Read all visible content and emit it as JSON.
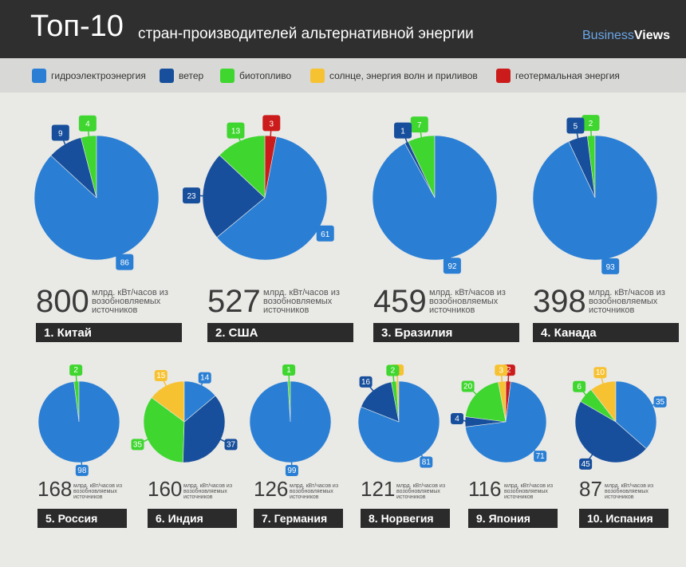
{
  "header": {
    "title_main": "Топ-10",
    "title_sub": "стран-производителей альтернативной энергии",
    "brand_a": "Business",
    "brand_b": "Views"
  },
  "legend": [
    {
      "label": "гидроэлектроэнергия",
      "color": "#2a7fd4"
    },
    {
      "label": "ветер",
      "color": "#184f9c"
    },
    {
      "label": "биотопливо",
      "color": "#3fd62f"
    },
    {
      "label": "солнце, энергия волн и приливов",
      "color": "#f7c232"
    },
    {
      "label": "геотермальная энергия",
      "color": "#cc1b1b"
    }
  ],
  "unit_text": "млрд. кВт/часов из возобновляемых источников",
  "chart_data": {
    "type": "pie",
    "title": "Топ-10 стран-производителей альтернативной энергии",
    "series_names": [
      "гидроэлектроэнергия",
      "ветер",
      "биотопливо",
      "солнце, энергия волн и приливов",
      "геотермальная энергия"
    ],
    "countries": [
      {
        "rank_label": "1. Китай",
        "total": "800",
        "shares": {
          "hydro": 86,
          "wind": 9,
          "bio": 4
        }
      },
      {
        "rank_label": "2. США",
        "total": "527",
        "shares": {
          "hydro": 61,
          "wind": 23,
          "bio": 13,
          "geo": 3
        }
      },
      {
        "rank_label": "3. Бразилия",
        "total": "459",
        "shares": {
          "hydro": 92,
          "wind": 1,
          "bio": 7
        }
      },
      {
        "rank_label": "4. Канада",
        "total": "398",
        "shares": {
          "hydro": 93,
          "wind": 5,
          "bio": 2
        }
      },
      {
        "rank_label": "5. Россия",
        "total": "168",
        "shares": {
          "hydro": 98,
          "bio": 2
        }
      },
      {
        "rank_label": "6. Индия",
        "total": "160",
        "shares": {
          "hydro": 14,
          "wind": 37,
          "bio": 35,
          "solar": 15
        }
      },
      {
        "rank_label": "7. Германия",
        "total": "126",
        "shares": {
          "hydro": 99,
          "bio": 1
        }
      },
      {
        "rank_label": "8. Норвегия",
        "total": "121",
        "shares": {
          "hydro": 81,
          "wind": 16,
          "bio": 2,
          "solar": 1
        }
      },
      {
        "rank_label": "9. Япония",
        "total": "116",
        "shares": {
          "hydro": 71,
          "wind": 4,
          "bio": 20,
          "solar": 3,
          "geo": 2
        }
      },
      {
        "rank_label": "10. Испания",
        "total": "87",
        "shares": {
          "hydro": 35,
          "wind": 45,
          "bio": 6,
          "solar": 10
        }
      }
    ]
  }
}
